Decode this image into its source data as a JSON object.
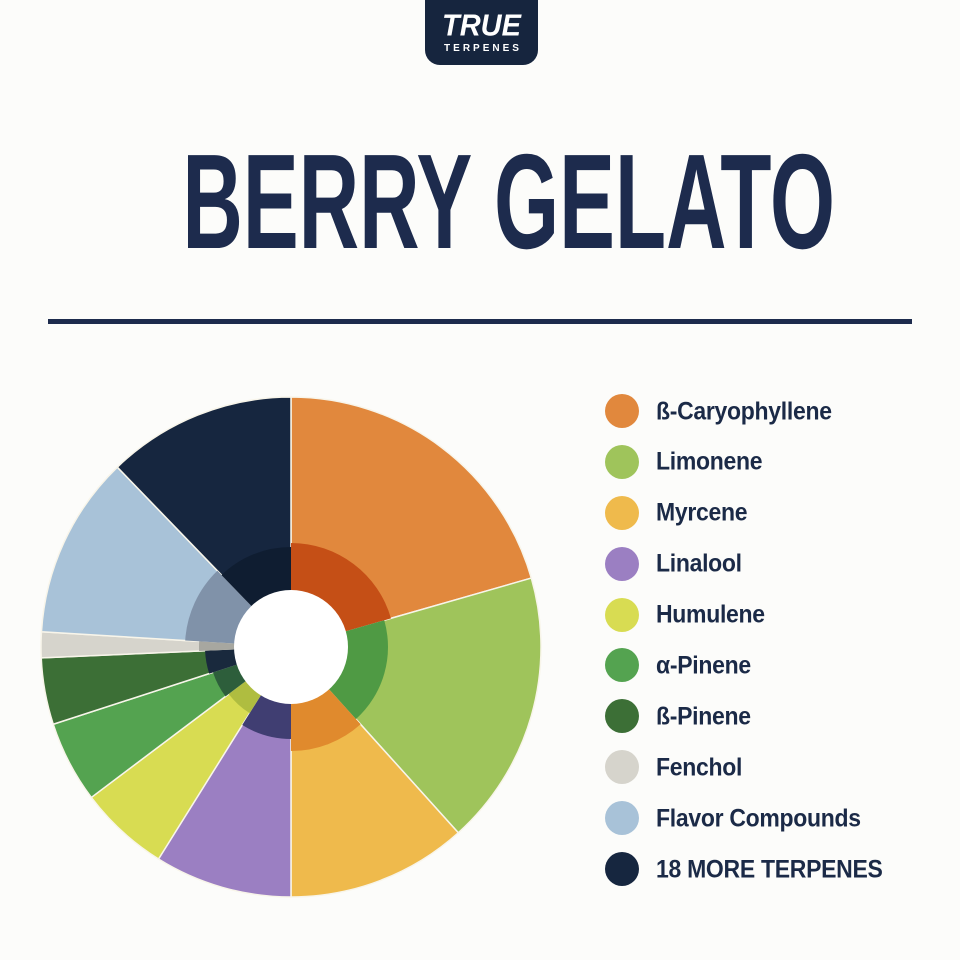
{
  "page": {
    "background_color": "#FCFCFA",
    "accent_navy": "#1D2B4D"
  },
  "logo": {
    "brand_line1": "TRUE",
    "brand_line2": "TERPENES",
    "background_color": "#16253E",
    "text_color": "#FFFFFF"
  },
  "header": {
    "title": "BERRY GELATO"
  },
  "divider": {
    "color": "#1D2B4D"
  },
  "chart_data": {
    "type": "pie",
    "title": "BERRY GELATO",
    "style": "donut with white center hole and darker inner ring per slice",
    "units": "share of terpene profile, estimated from arc angles",
    "legend_position": "right",
    "outer_radius": 250,
    "hole_radius": 57,
    "separator_color": "#F8F5EA",
    "segments": [
      {
        "label": "ß-Caryophyllene",
        "percent": 20.6,
        "start_deg": 0,
        "end_deg": 74,
        "color": "#E1883D",
        "inner_color": "#C54F16",
        "inner_r": 104
      },
      {
        "label": "Limonene",
        "percent": 17.8,
        "start_deg": 74,
        "end_deg": 138,
        "color": "#9FC45B",
        "inner_color": "#4F9A44",
        "inner_r": 97
      },
      {
        "label": "Myrcene",
        "percent": 11.7,
        "start_deg": 138,
        "end_deg": 180,
        "color": "#EFBA4C",
        "inner_color": "#E08A2D",
        "inner_r": 104
      },
      {
        "label": "Linalool",
        "percent": 8.9,
        "start_deg": 180,
        "end_deg": 212,
        "color": "#9B7FC2",
        "inner_color": "#403E72",
        "inner_r": 92
      },
      {
        "label": "Humulene",
        "percent": 5.8,
        "start_deg": 212,
        "end_deg": 233,
        "color": "#D8DC52",
        "inner_color": "#AFBD40",
        "inner_r": 78
      },
      {
        "label": "α-Pinene",
        "percent": 5.3,
        "start_deg": 233,
        "end_deg": 252,
        "color": "#54A350",
        "inner_color": "#2D5E3B",
        "inner_r": 82
      },
      {
        "label": "ß-Pinene",
        "percent": 4.3,
        "start_deg": 252,
        "end_deg": 267.5,
        "color": "#3C6F36",
        "inner_color": "#19293D",
        "inner_r": 86
      },
      {
        "label": "Fenchol",
        "percent": 1.7,
        "start_deg": 267.5,
        "end_deg": 273.5,
        "color": "#D6D4CC",
        "inner_color": "#A7A7A0",
        "inner_r": 92
      },
      {
        "label": "Flavor Compounds",
        "percent": 11.8,
        "start_deg": 273.5,
        "end_deg": 316,
        "color": "#A8C2D8",
        "inner_color": "#8092A9",
        "inner_r": 106
      },
      {
        "label": "18 MORE TERPENES",
        "percent": 12.2,
        "start_deg": 316,
        "end_deg": 360,
        "color": "#16263F",
        "inner_color": "#0F1D31",
        "inner_r": 100
      }
    ]
  }
}
